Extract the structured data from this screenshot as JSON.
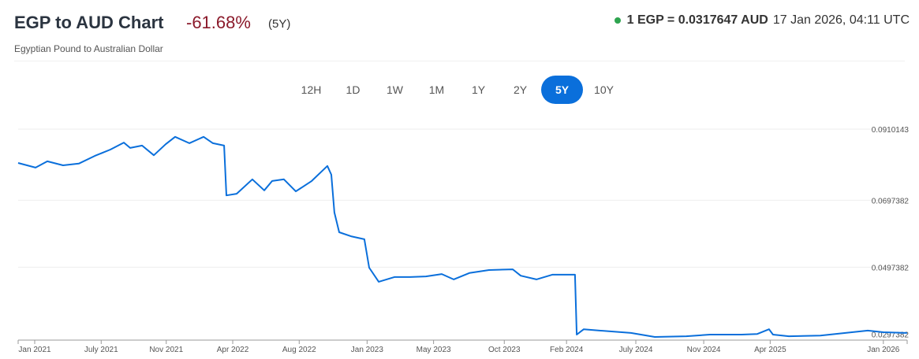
{
  "header": {
    "title": "EGP to AUD Chart",
    "change": "-61.68%",
    "period": "(5Y)",
    "subtitle": "Egyptian Pound to Australian Dollar",
    "rate": "1 EGP = 0.0317647 AUD",
    "timestamp": "17 Jan 2026, 04:11 UTC",
    "status_color": "#2ea44f"
  },
  "tabs": [
    {
      "label": "12H"
    },
    {
      "label": "1D"
    },
    {
      "label": "1W"
    },
    {
      "label": "1M"
    },
    {
      "label": "1Y"
    },
    {
      "label": "2Y"
    },
    {
      "label": "5Y",
      "active": true
    },
    {
      "label": "10Y"
    }
  ],
  "chart_data": {
    "type": "line",
    "title": "EGP to AUD",
    "line_color": "#0a6fdb",
    "x_unit": "months since Jan 2021",
    "ylim": [
      0.028,
      0.092
    ],
    "y_ticks": [
      {
        "value": 0.0910143,
        "label": "0.0910143"
      },
      {
        "value": 0.0697382,
        "label": "0.0697382"
      },
      {
        "value": 0.0497382,
        "label": "0.0497382"
      },
      {
        "value": 0.0297382,
        "label": "0.0297382"
      }
    ],
    "x_ticks": [
      {
        "m": 0,
        "label": "Jan 2021"
      },
      {
        "m": 4.7,
        "label": "July 2021"
      },
      {
        "m": 9.3,
        "label": "Nov 2021"
      },
      {
        "m": 14,
        "label": "Apr 2022"
      },
      {
        "m": 18.7,
        "label": "Aug 2022"
      },
      {
        "m": 23.5,
        "label": "Jan 2023"
      },
      {
        "m": 28.2,
        "label": "May 2023"
      },
      {
        "m": 33.2,
        "label": "Oct 2023"
      },
      {
        "m": 37.6,
        "label": "Feb 2024"
      },
      {
        "m": 42.5,
        "label": "July 2024"
      },
      {
        "m": 47.3,
        "label": "Nov 2024"
      },
      {
        "m": 52,
        "label": "Apr 2025"
      },
      {
        "m": 60,
        "label": "Jan 2026"
      }
    ],
    "points": [
      [
        -1.17,
        0.0809
      ],
      [
        0.06,
        0.0795
      ],
      [
        0.89,
        0.0814
      ],
      [
        2.0,
        0.0802
      ],
      [
        3.12,
        0.0807
      ],
      [
        4.24,
        0.083
      ],
      [
        5.35,
        0.0849
      ],
      [
        6.3,
        0.087
      ],
      [
        6.75,
        0.0854
      ],
      [
        7.59,
        0.0861
      ],
      [
        8.42,
        0.0832
      ],
      [
        9.26,
        0.0865
      ],
      [
        9.93,
        0.0887
      ],
      [
        10.93,
        0.0868
      ],
      [
        11.94,
        0.0887
      ],
      [
        12.6,
        0.0868
      ],
      [
        13.39,
        0.0861
      ],
      [
        13.55,
        0.0712
      ],
      [
        14.28,
        0.0717
      ],
      [
        15.39,
        0.076
      ],
      [
        16.23,
        0.0727
      ],
      [
        16.79,
        0.0755
      ],
      [
        17.62,
        0.076
      ],
      [
        18.46,
        0.0724
      ],
      [
        19.58,
        0.0755
      ],
      [
        20.69,
        0.08
      ],
      [
        20.97,
        0.0774
      ],
      [
        21.19,
        0.0661
      ],
      [
        21.53,
        0.0602
      ],
      [
        22.36,
        0.059
      ],
      [
        23.31,
        0.0581
      ],
      [
        23.65,
        0.0496
      ],
      [
        24.32,
        0.0454
      ],
      [
        25.43,
        0.0468
      ],
      [
        26.55,
        0.0468
      ],
      [
        27.66,
        0.047
      ],
      [
        28.78,
        0.0477
      ],
      [
        29.62,
        0.0461
      ],
      [
        30.73,
        0.048
      ],
      [
        32.12,
        0.0489
      ],
      [
        33.8,
        0.0491
      ],
      [
        34.36,
        0.0472
      ],
      [
        35.47,
        0.0461
      ],
      [
        36.59,
        0.0475
      ],
      [
        38.2,
        0.0475
      ],
      [
        38.32,
        0.0296
      ],
      [
        38.82,
        0.0312
      ],
      [
        39.93,
        0.0308
      ],
      [
        42.16,
        0.0301
      ],
      [
        43.84,
        0.0289
      ],
      [
        46.07,
        0.0291
      ],
      [
        47.74,
        0.0296
      ],
      [
        49.97,
        0.0296
      ],
      [
        51.09,
        0.0298
      ],
      [
        51.92,
        0.0312
      ],
      [
        52.2,
        0.0296
      ],
      [
        53.32,
        0.0291
      ],
      [
        55.55,
        0.0293
      ],
      [
        57.78,
        0.0303
      ],
      [
        58.9,
        0.0308
      ],
      [
        60.0,
        0.0303
      ],
      [
        61.68,
        0.0301
      ]
    ]
  }
}
